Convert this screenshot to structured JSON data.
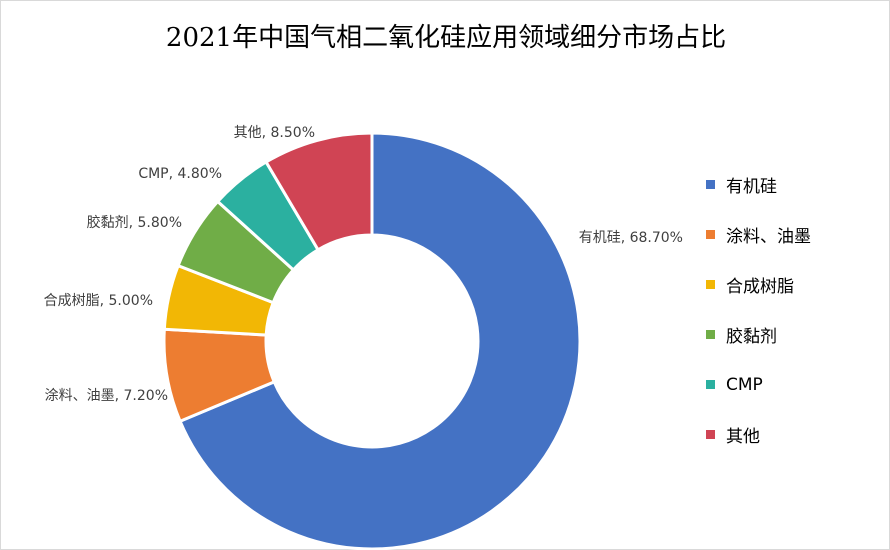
{
  "chart_data": {
    "type": "pie",
    "variant": "donut",
    "title": "2021年中国气相二氧化硅应用领域细分市场占比",
    "categories": [
      "有机硅",
      "涂料、油墨",
      "合成树脂",
      "胶黏剂",
      "CMP",
      "其他"
    ],
    "values": [
      68.7,
      7.2,
      5.0,
      5.8,
      4.8,
      8.5
    ],
    "data_labels": [
      "有机硅, 68.70%",
      "涂料、油墨, 7.20%",
      "合成树脂, 5.00%",
      "胶黏剂, 5.80%",
      "CMP, 4.80%",
      "其他, 8.50%"
    ],
    "colors": [
      "#4472C4",
      "#ED7D31",
      "#F2B705",
      "#70AD47",
      "#2BB0A0",
      "#D04454"
    ],
    "legend_position": "right",
    "start_angle": "top, clockwise"
  }
}
